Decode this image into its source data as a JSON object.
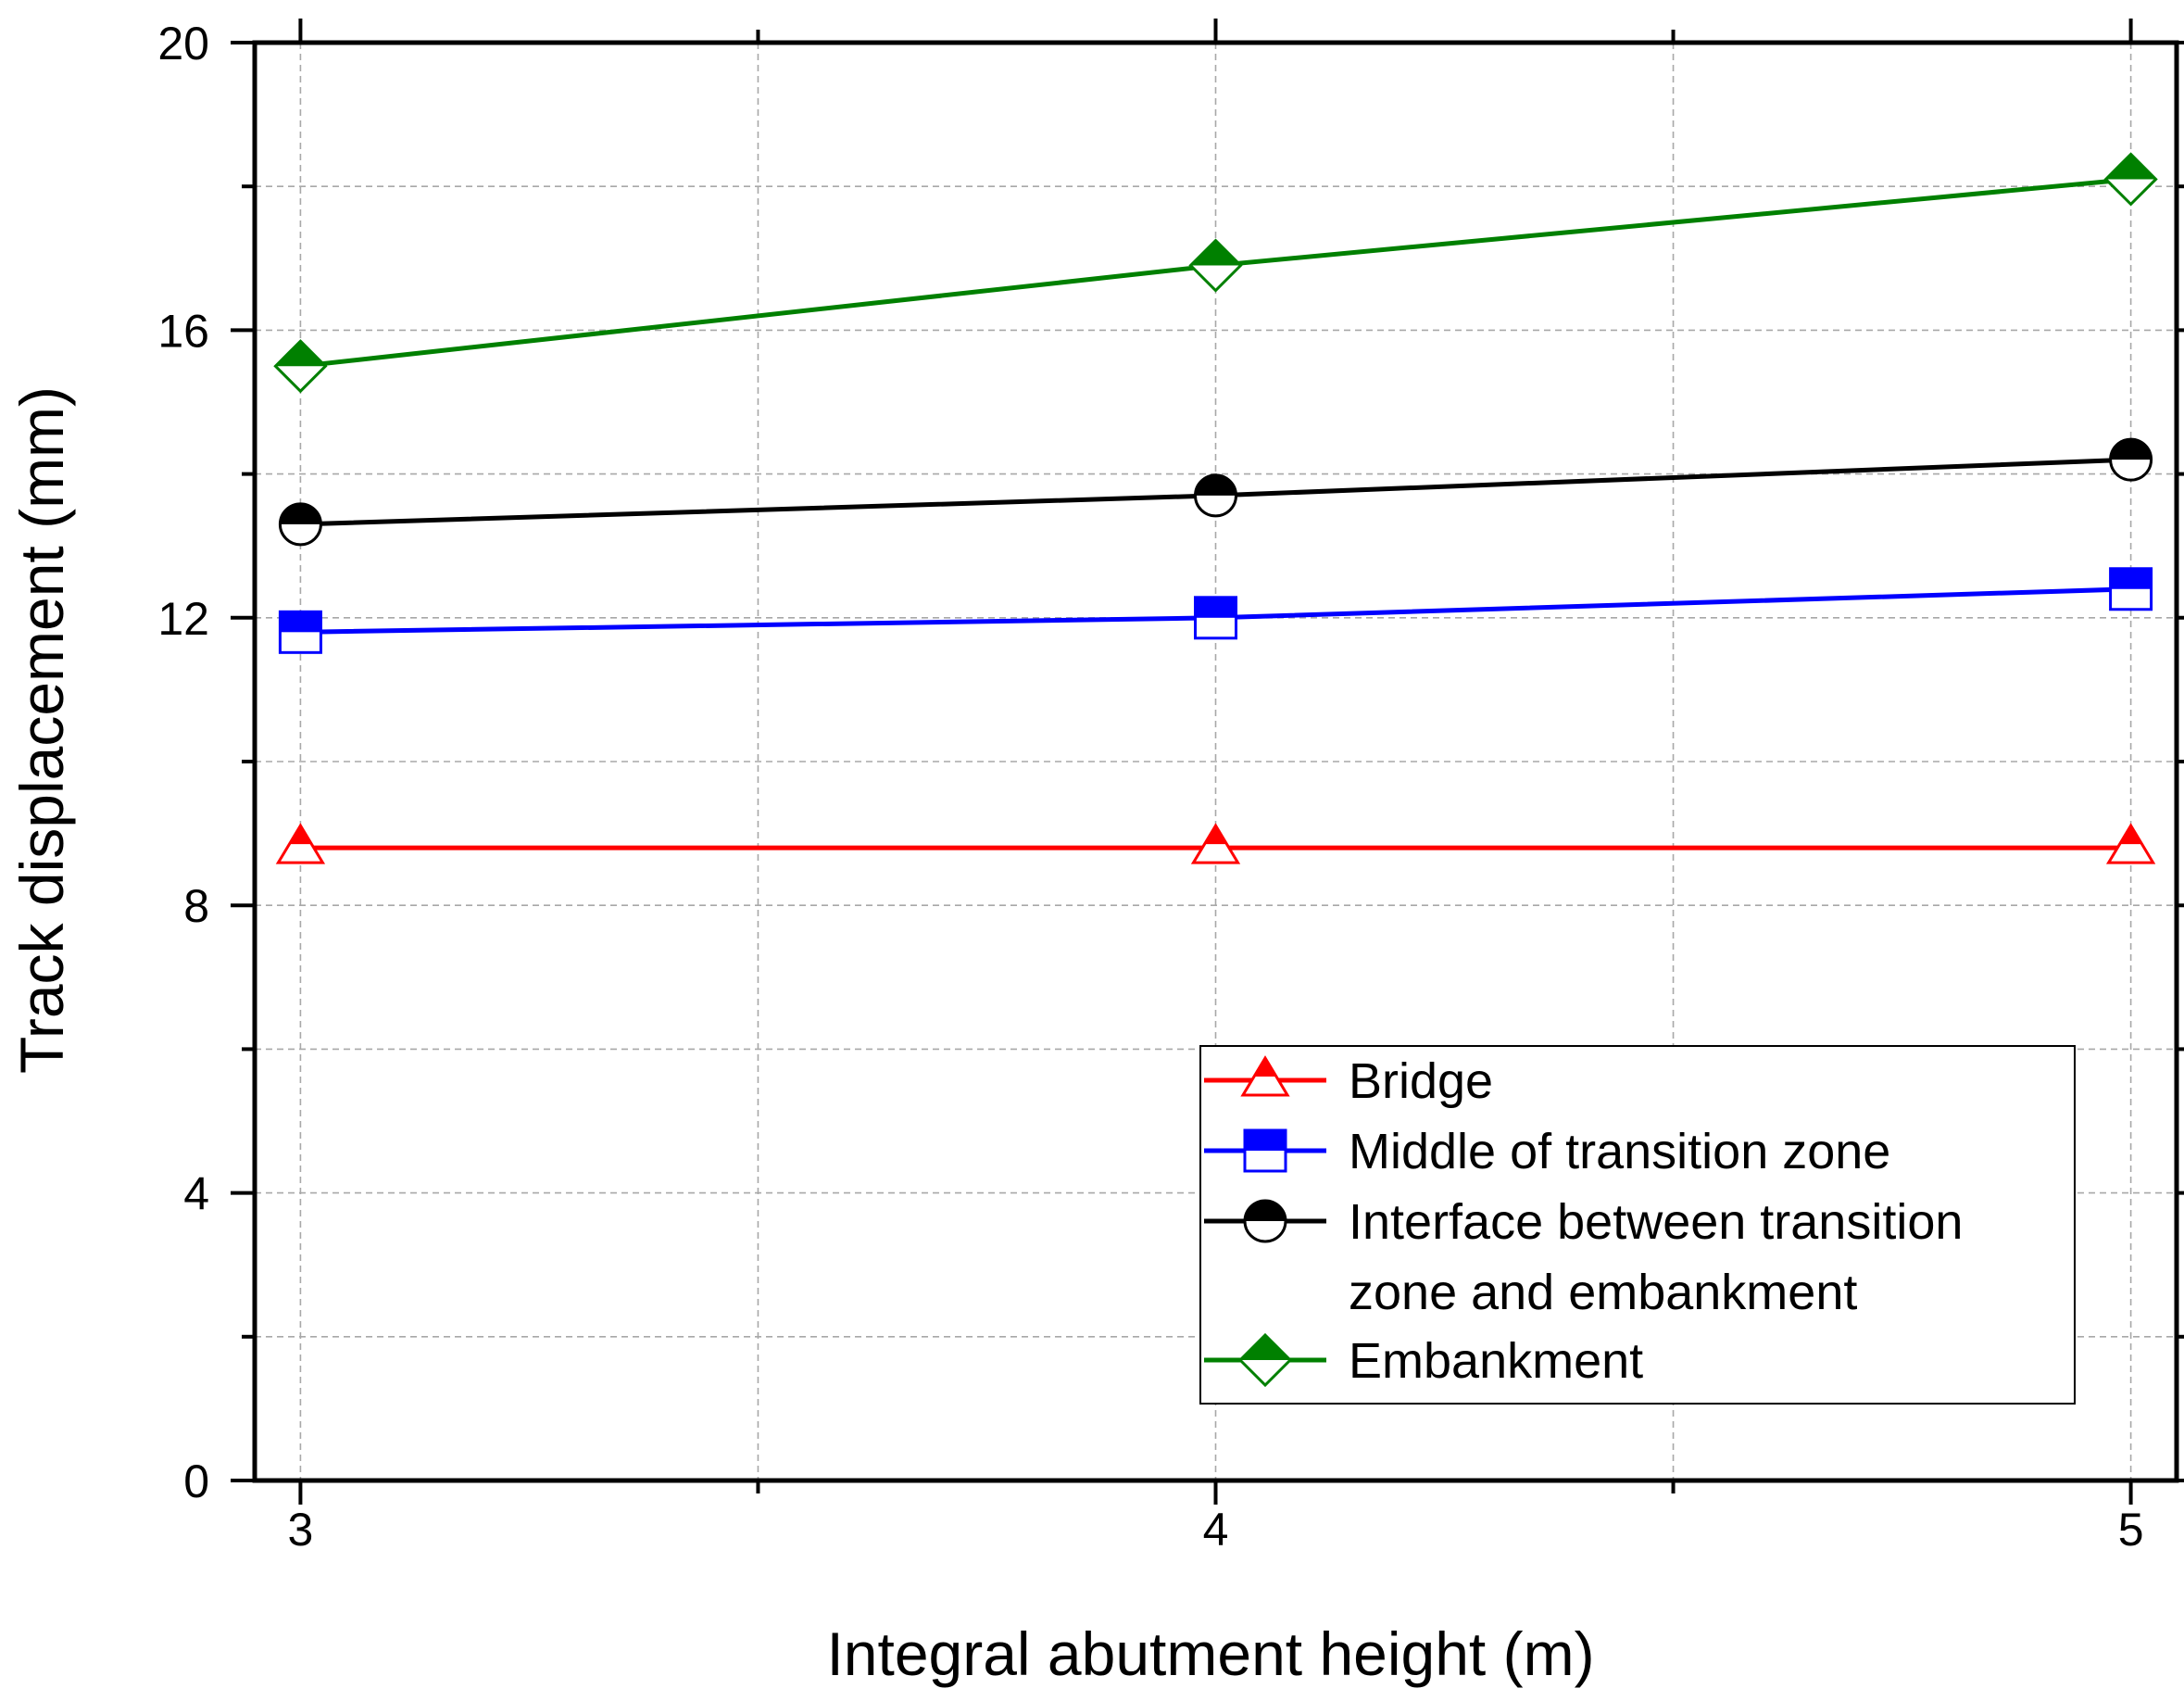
{
  "chart_data": {
    "type": "line",
    "title": "",
    "xlabel": "Integral abutment height (m)",
    "ylabel": "Track displacement (mm)",
    "x": [
      3,
      4,
      5
    ],
    "xlim": [
      2.95,
      5.05
    ],
    "ylim": [
      0,
      20
    ],
    "xticks": [
      "3",
      "4",
      "5"
    ],
    "yticks": [
      "0",
      "4",
      "8",
      "12",
      "16",
      "20"
    ],
    "grid": true,
    "legend_position": "bottom-right",
    "series": [
      {
        "name": "Bridge",
        "values": [
          8.8,
          8.8,
          8.8
        ],
        "color": "#ff0000",
        "marker": "triangle"
      },
      {
        "name": "Middle of transition zone",
        "values": [
          11.8,
          12.0,
          12.4
        ],
        "color": "#0000ff",
        "marker": "square"
      },
      {
        "name": "Interface between transition zone and embankment",
        "legend_lines": [
          "Interface between transition",
          "zone and embankment"
        ],
        "values": [
          13.3,
          13.7,
          14.2
        ],
        "color": "#000000",
        "marker": "circle"
      },
      {
        "name": "Embankment",
        "values": [
          15.5,
          16.9,
          18.1
        ],
        "color": "#008000",
        "marker": "diamond"
      }
    ]
  }
}
